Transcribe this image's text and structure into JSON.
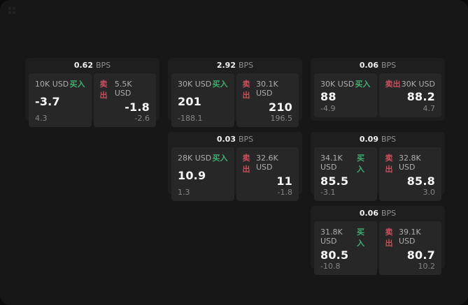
{
  "labels": {
    "bps": "BPS",
    "buy": "买入",
    "sell": "卖出"
  },
  "colors": {
    "buy_green": "#3fae6e",
    "sell_red": "#c9505e"
  },
  "cards": [
    {
      "bps": "0.62",
      "buy": {
        "size": "10K USD",
        "value": "-3.7",
        "sub": "4.3"
      },
      "sell": {
        "size": "5.5K USD",
        "value": "-1.8",
        "sub": "-2.6"
      }
    },
    {
      "bps": "2.92",
      "buy": {
        "size": "30K USD",
        "value": "201",
        "sub": "-188.1"
      },
      "sell": {
        "size": "30.1K USD",
        "value": "210",
        "sub": "196.5"
      }
    },
    {
      "bps": "0.06",
      "buy": {
        "size": "30K USD",
        "value": "88",
        "sub": "-4.9"
      },
      "sell": {
        "size": "30K USD",
        "value": "88.2",
        "sub": "4.7"
      }
    },
    {
      "bps": "0.03",
      "buy": {
        "size": "28K USD",
        "value": "10.9",
        "sub": "1.3"
      },
      "sell": {
        "size": "32.6K USD",
        "value": "11",
        "sub": "-1.8"
      }
    },
    {
      "bps": "0.09",
      "buy": {
        "size": "34.1K USD",
        "value": "85.5",
        "sub": "-3.1"
      },
      "sell": {
        "size": "32.8K USD",
        "value": "85.8",
        "sub": "3.0"
      }
    },
    {
      "bps": "0.06",
      "buy": {
        "size": "31.8K USD",
        "value": "80.5",
        "sub": "-10.8"
      },
      "sell": {
        "size": "39.1K USD",
        "value": "80.7",
        "sub": "10.2"
      }
    }
  ]
}
